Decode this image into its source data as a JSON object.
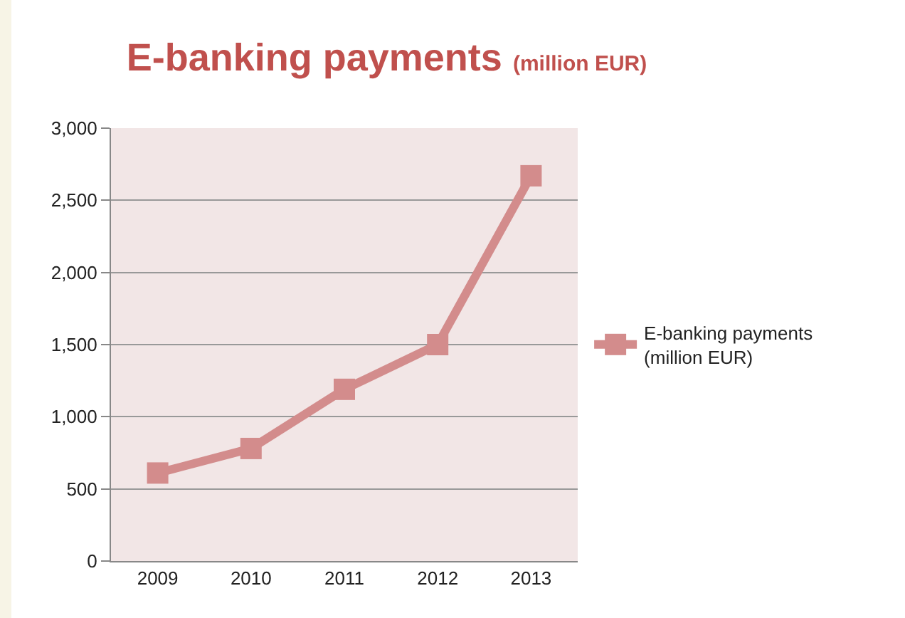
{
  "chart_data": {
    "type": "line",
    "title": "E-banking payments",
    "subtitle": "(million EUR)",
    "categories": [
      "2009",
      "2010",
      "2011",
      "2012",
      "2013"
    ],
    "series": [
      {
        "name": "E-banking payments (million EUR)",
        "color": "#d38c8c",
        "values": [
          610,
          780,
          1190,
          1500,
          2670
        ]
      }
    ],
    "ylim": [
      0,
      3000
    ],
    "yticks": [
      {
        "value": 0,
        "label": "0"
      },
      {
        "value": 500,
        "label": "500"
      },
      {
        "value": 1000,
        "label": "1,000"
      },
      {
        "value": 1500,
        "label": "1,500"
      },
      {
        "value": 2000,
        "label": "2,000"
      },
      {
        "value": 2500,
        "label": "2,500"
      },
      {
        "value": 3000,
        "label": "3,000"
      }
    ],
    "grid": "y",
    "legend": "right",
    "marker": "square",
    "line_style": "solid"
  }
}
